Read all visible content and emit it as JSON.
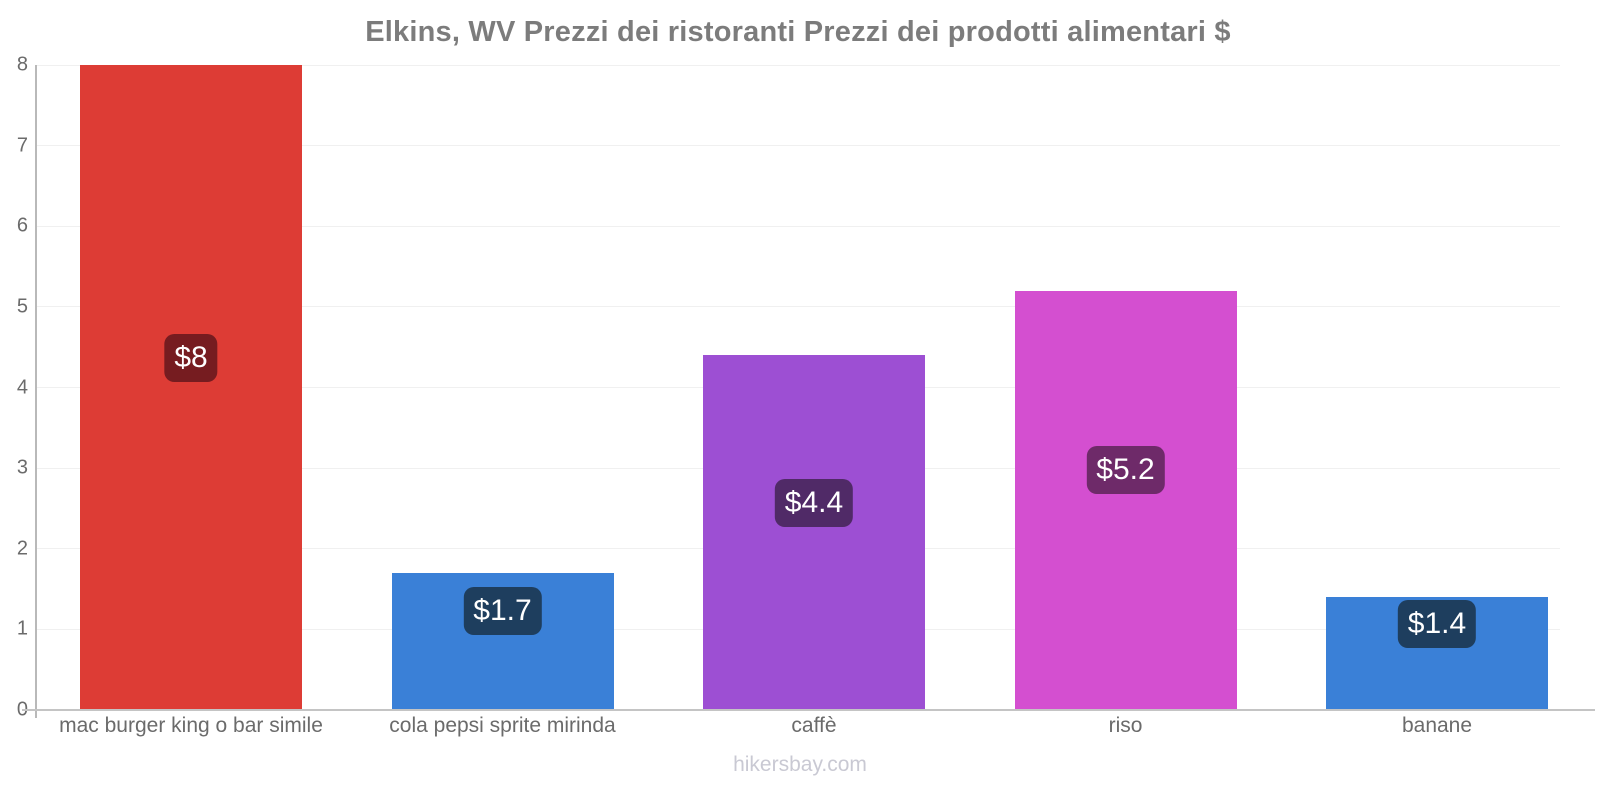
{
  "footer": "hikersbay.com",
  "chart_data": {
    "type": "bar",
    "title": "Elkins, WV Prezzi dei ristoranti Prezzi dei prodotti alimentari $",
    "categories": [
      "mac burger king o bar simile",
      "cola pepsi sprite mirinda",
      "caffè",
      "riso",
      "banane"
    ],
    "values": [
      8,
      1.7,
      4.4,
      5.2,
      1.4
    ],
    "value_labels": [
      "$8",
      "$1.7",
      "$4.4",
      "$5.2",
      "$1.4"
    ],
    "bar_colors": [
      "#dd3c35",
      "#3a80d7",
      "#9d4fd3",
      "#d44fd0",
      "#3a80d7"
    ],
    "value_badge_colors": [
      "#761c20",
      "#1e3e5e",
      "#502a67",
      "#6e2a69",
      "#1e3e5e"
    ],
    "xlabel": "",
    "ylabel": "",
    "ylim": [
      0,
      8
    ],
    "yticks": [
      0,
      1,
      2,
      3,
      4,
      5,
      6,
      7,
      8
    ],
    "grid": "horizontal",
    "legend": "none",
    "text_colors": {
      "title": "#7c7c7c",
      "axis_labels": "#6b6b6b",
      "watermark": "#c9c9d3",
      "gridline": "#f0f0f0",
      "axis_line": "#c4c4c4"
    }
  }
}
